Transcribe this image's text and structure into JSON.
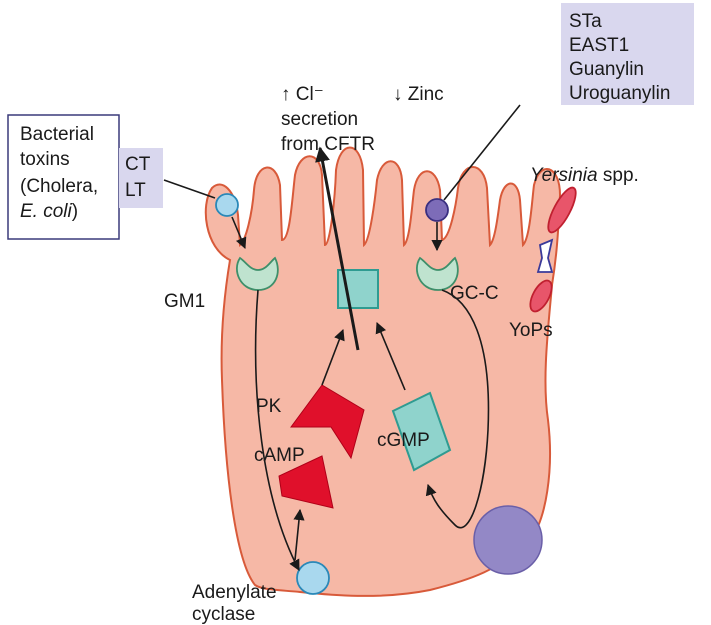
{
  "toxins_box": {
    "line1": "Bacterial",
    "line2": "toxins",
    "line3": "(Cholera,",
    "line4_italic": "E. coli",
    "line4_rest": ")"
  },
  "ct_lt": {
    "ct": "CT",
    "lt": "LT"
  },
  "sta_box": {
    "line1": "STa",
    "line2": "EAST1",
    "line3": "Guanylin",
    "line4": "Uroguanylin"
  },
  "cl_label": {
    "line1": "↑ Cl⁻",
    "line2": "secretion",
    "line3": "from CFTR"
  },
  "zinc_label": "↓ Zinc",
  "yersinia": {
    "italic": "Yersinia",
    "rest": " spp."
  },
  "gm1": "GM1",
  "gcc": "GC-C",
  "yops": "YoPs",
  "pk": "PK",
  "camp": "cAMP",
  "cgmp": "cGMP",
  "adenylate": {
    "line1": "Adenylate",
    "line2": "cyclase"
  },
  "colors": {
    "cell_fill": "#f6b8a6",
    "cell_stroke": "#d85a3a",
    "receptor_fill": "#bfe3cf",
    "cftr_fill": "#8fd3cc",
    "kinase_red": "#e0102b",
    "nucleus": "#9388c6",
    "label_box": "#d9d7ee",
    "adenylate_fill": "#a9d8ee"
  }
}
